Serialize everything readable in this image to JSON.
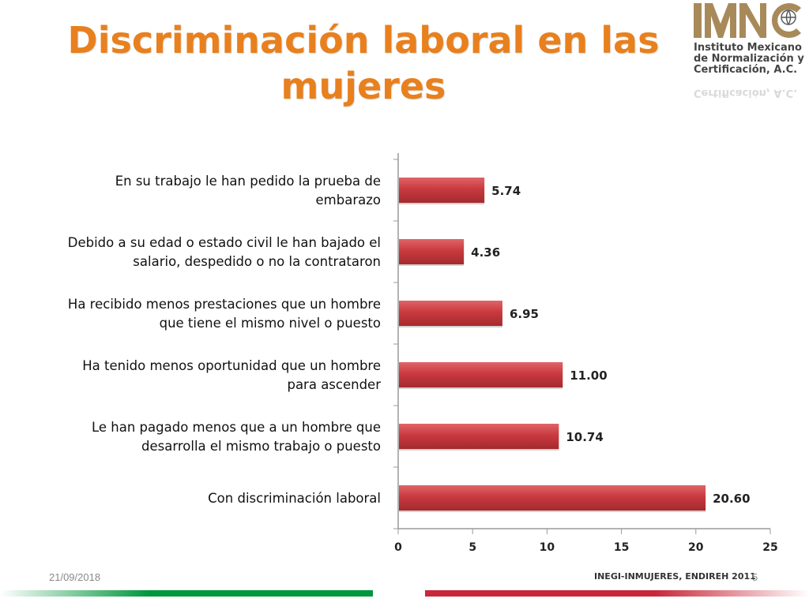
{
  "slide": {
    "title_line1": "Discriminación laboral en las",
    "title_line2": "mujeres",
    "date": "21/09/2018",
    "page_number": "5",
    "source": "INEGI-INMUJERES, ENDIREH 2011"
  },
  "logo": {
    "letters": "IMNC",
    "line1": "Instituto Mexicano",
    "line2": "de Normalización y",
    "line3": "Certificación, A.C."
  },
  "colors": {
    "title": "#e8801e",
    "bar": "#c0353a",
    "bar_highlight": "#d9555a",
    "logo": "#a88a5a",
    "stripe_green": "#00963c",
    "stripe_red": "#c8283a"
  },
  "chart_data": {
    "type": "bar",
    "orientation": "horizontal",
    "categories": [
      [
        "En su trabajo le han pedido la prueba de",
        "embarazo"
      ],
      [
        "Debido a su edad o estado civil le han bajado el",
        "salario, despedido o no la contrataron"
      ],
      [
        "Ha recibido menos prestaciones que un hombre",
        "que tiene el mismo nivel o puesto"
      ],
      [
        "Ha tenido menos oportunidad que un hombre",
        "para ascender"
      ],
      [
        "Le han pagado menos que a un hombre que",
        "desarrolla el mismo trabajo o puesto"
      ],
      [
        "Con discriminación laboral"
      ]
    ],
    "values": [
      5.74,
      4.36,
      6.95,
      11.0,
      10.74,
      20.6
    ],
    "value_labels": [
      "5.74",
      "4.36",
      "6.95",
      "11.00",
      "10.74",
      "20.60"
    ],
    "xlim": [
      0,
      25
    ],
    "xticks": [
      "0",
      "5",
      "10",
      "15",
      "20",
      "25"
    ],
    "title": "",
    "xlabel": "",
    "ylabel": "",
    "grid": false,
    "legend": "none"
  }
}
